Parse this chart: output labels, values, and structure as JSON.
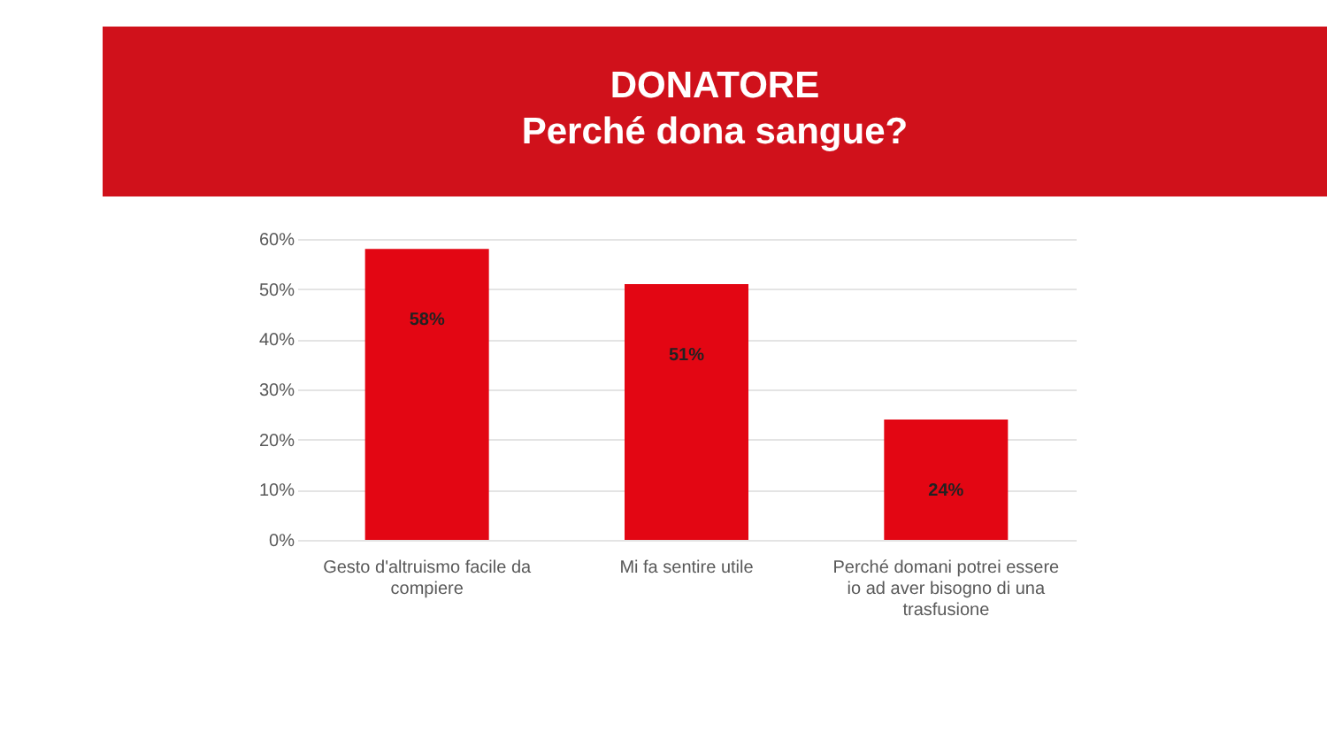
{
  "chart_data": {
    "type": "bar",
    "title": "DONATORE",
    "subtitle": "Perché dona sangue?",
    "categories": [
      "Gesto d'altruismo facile da compiere",
      "Mi fa sentire utile",
      "Perché domani potrei essere io ad aver bisogno di una trasfusione"
    ],
    "values": [
      58,
      51,
      24
    ],
    "color": "#e30613",
    "value_labels": [
      "58%",
      "51%",
      "24%"
    ],
    "ylim": [
      0,
      60
    ],
    "yticks": [
      {
        "value": 0,
        "label": "0%"
      },
      {
        "value": 10,
        "label": "10%"
      },
      {
        "value": 20,
        "label": "20%"
      },
      {
        "value": 30,
        "label": "30%"
      },
      {
        "value": 40,
        "label": "40%"
      },
      {
        "value": 50,
        "label": "50%"
      },
      {
        "value": 60,
        "label": "60%"
      }
    ],
    "grid": "y"
  }
}
